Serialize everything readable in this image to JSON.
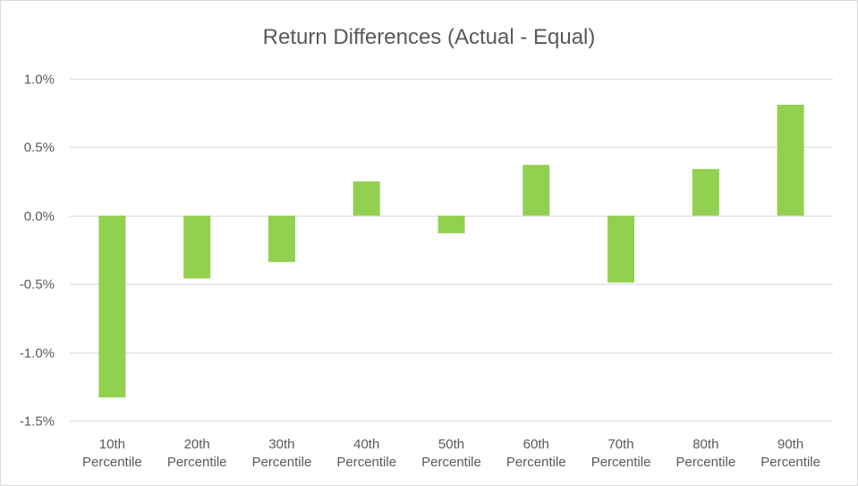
{
  "chart_data": {
    "type": "bar",
    "title": "Return Differences (Actual - Equal)",
    "xlabel": "",
    "ylabel": "",
    "categories": [
      [
        "10th",
        "Percentile"
      ],
      [
        "20th",
        "Percentile"
      ],
      [
        "30th",
        "Percentile"
      ],
      [
        "40th",
        "Percentile"
      ],
      [
        "50th",
        "Percentile"
      ],
      [
        "60th",
        "Percentile"
      ],
      [
        "70th",
        "Percentile"
      ],
      [
        "80th",
        "Percentile"
      ],
      [
        "90th",
        "Percentile"
      ]
    ],
    "values": [
      -1.33,
      -0.46,
      -0.34,
      0.25,
      -0.13,
      0.37,
      -0.49,
      0.34,
      0.81
    ],
    "value_unit": "%",
    "ylim": [
      -1.5,
      1.0
    ],
    "yticks": [
      1.0,
      0.5,
      0.0,
      -0.5,
      -1.0,
      -1.5
    ],
    "ytick_labels": [
      "1.0%",
      "0.5%",
      "0.0%",
      "-0.5%",
      "-1.0%",
      "-1.5%"
    ],
    "grid": true,
    "legend": "none",
    "colors": {
      "bar": "#92d050",
      "grid": "#d9d9d9",
      "text": "#595959"
    }
  }
}
